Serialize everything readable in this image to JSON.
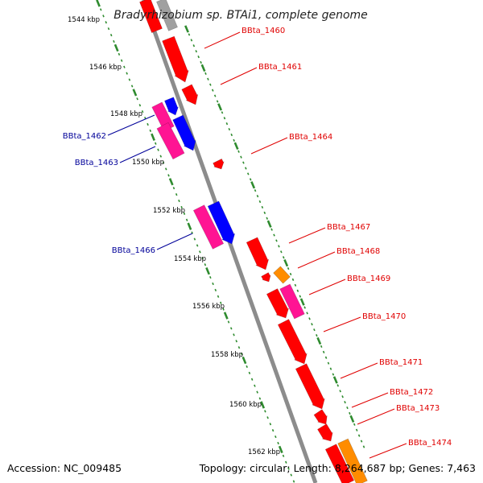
{
  "title": "Bradyrhizobium sp. BTAi1, complete genome",
  "footer": {
    "accession": "Accession: NC_009485",
    "summary": "Topology: circular; Length: 8,264,687 bp; Genes: 7,463"
  },
  "colors": {
    "forward_gene": "#ff0000",
    "reverse_gene_pink": "#ff1493",
    "reverse_gene_blue": "#0000ff",
    "other_feature": "#ff8c00",
    "backbone": "#8c8c8c",
    "tick": "#2e8b2e",
    "forward_label": "#e00000",
    "reverse_label": "#000099"
  },
  "kbp_ticks": [
    "1544 kbp",
    "1546 kbp",
    "1548 kbp",
    "1550 kbp",
    "1552 kbp",
    "1554 kbp",
    "1556 kbp",
    "1558 kbp",
    "1560 kbp",
    "1562 kbp"
  ],
  "gene_labels": [
    {
      "id": "BBta_1460",
      "strand": "forward"
    },
    {
      "id": "BBta_1461",
      "strand": "forward"
    },
    {
      "id": "BBta_1462",
      "strand": "reverse"
    },
    {
      "id": "BBta_1463",
      "strand": "reverse"
    },
    {
      "id": "BBta_1464",
      "strand": "forward"
    },
    {
      "id": "BBta_1466",
      "strand": "reverse"
    },
    {
      "id": "BBta_1467",
      "strand": "forward"
    },
    {
      "id": "BBta_1468",
      "strand": "forward"
    },
    {
      "id": "BBta_1469",
      "strand": "forward"
    },
    {
      "id": "BBta_1470",
      "strand": "forward"
    },
    {
      "id": "BBta_1471",
      "strand": "forward"
    },
    {
      "id": "BBta_1472",
      "strand": "forward"
    },
    {
      "id": "BBta_1473",
      "strand": "forward"
    },
    {
      "id": "BBta_1474",
      "strand": "forward"
    }
  ]
}
